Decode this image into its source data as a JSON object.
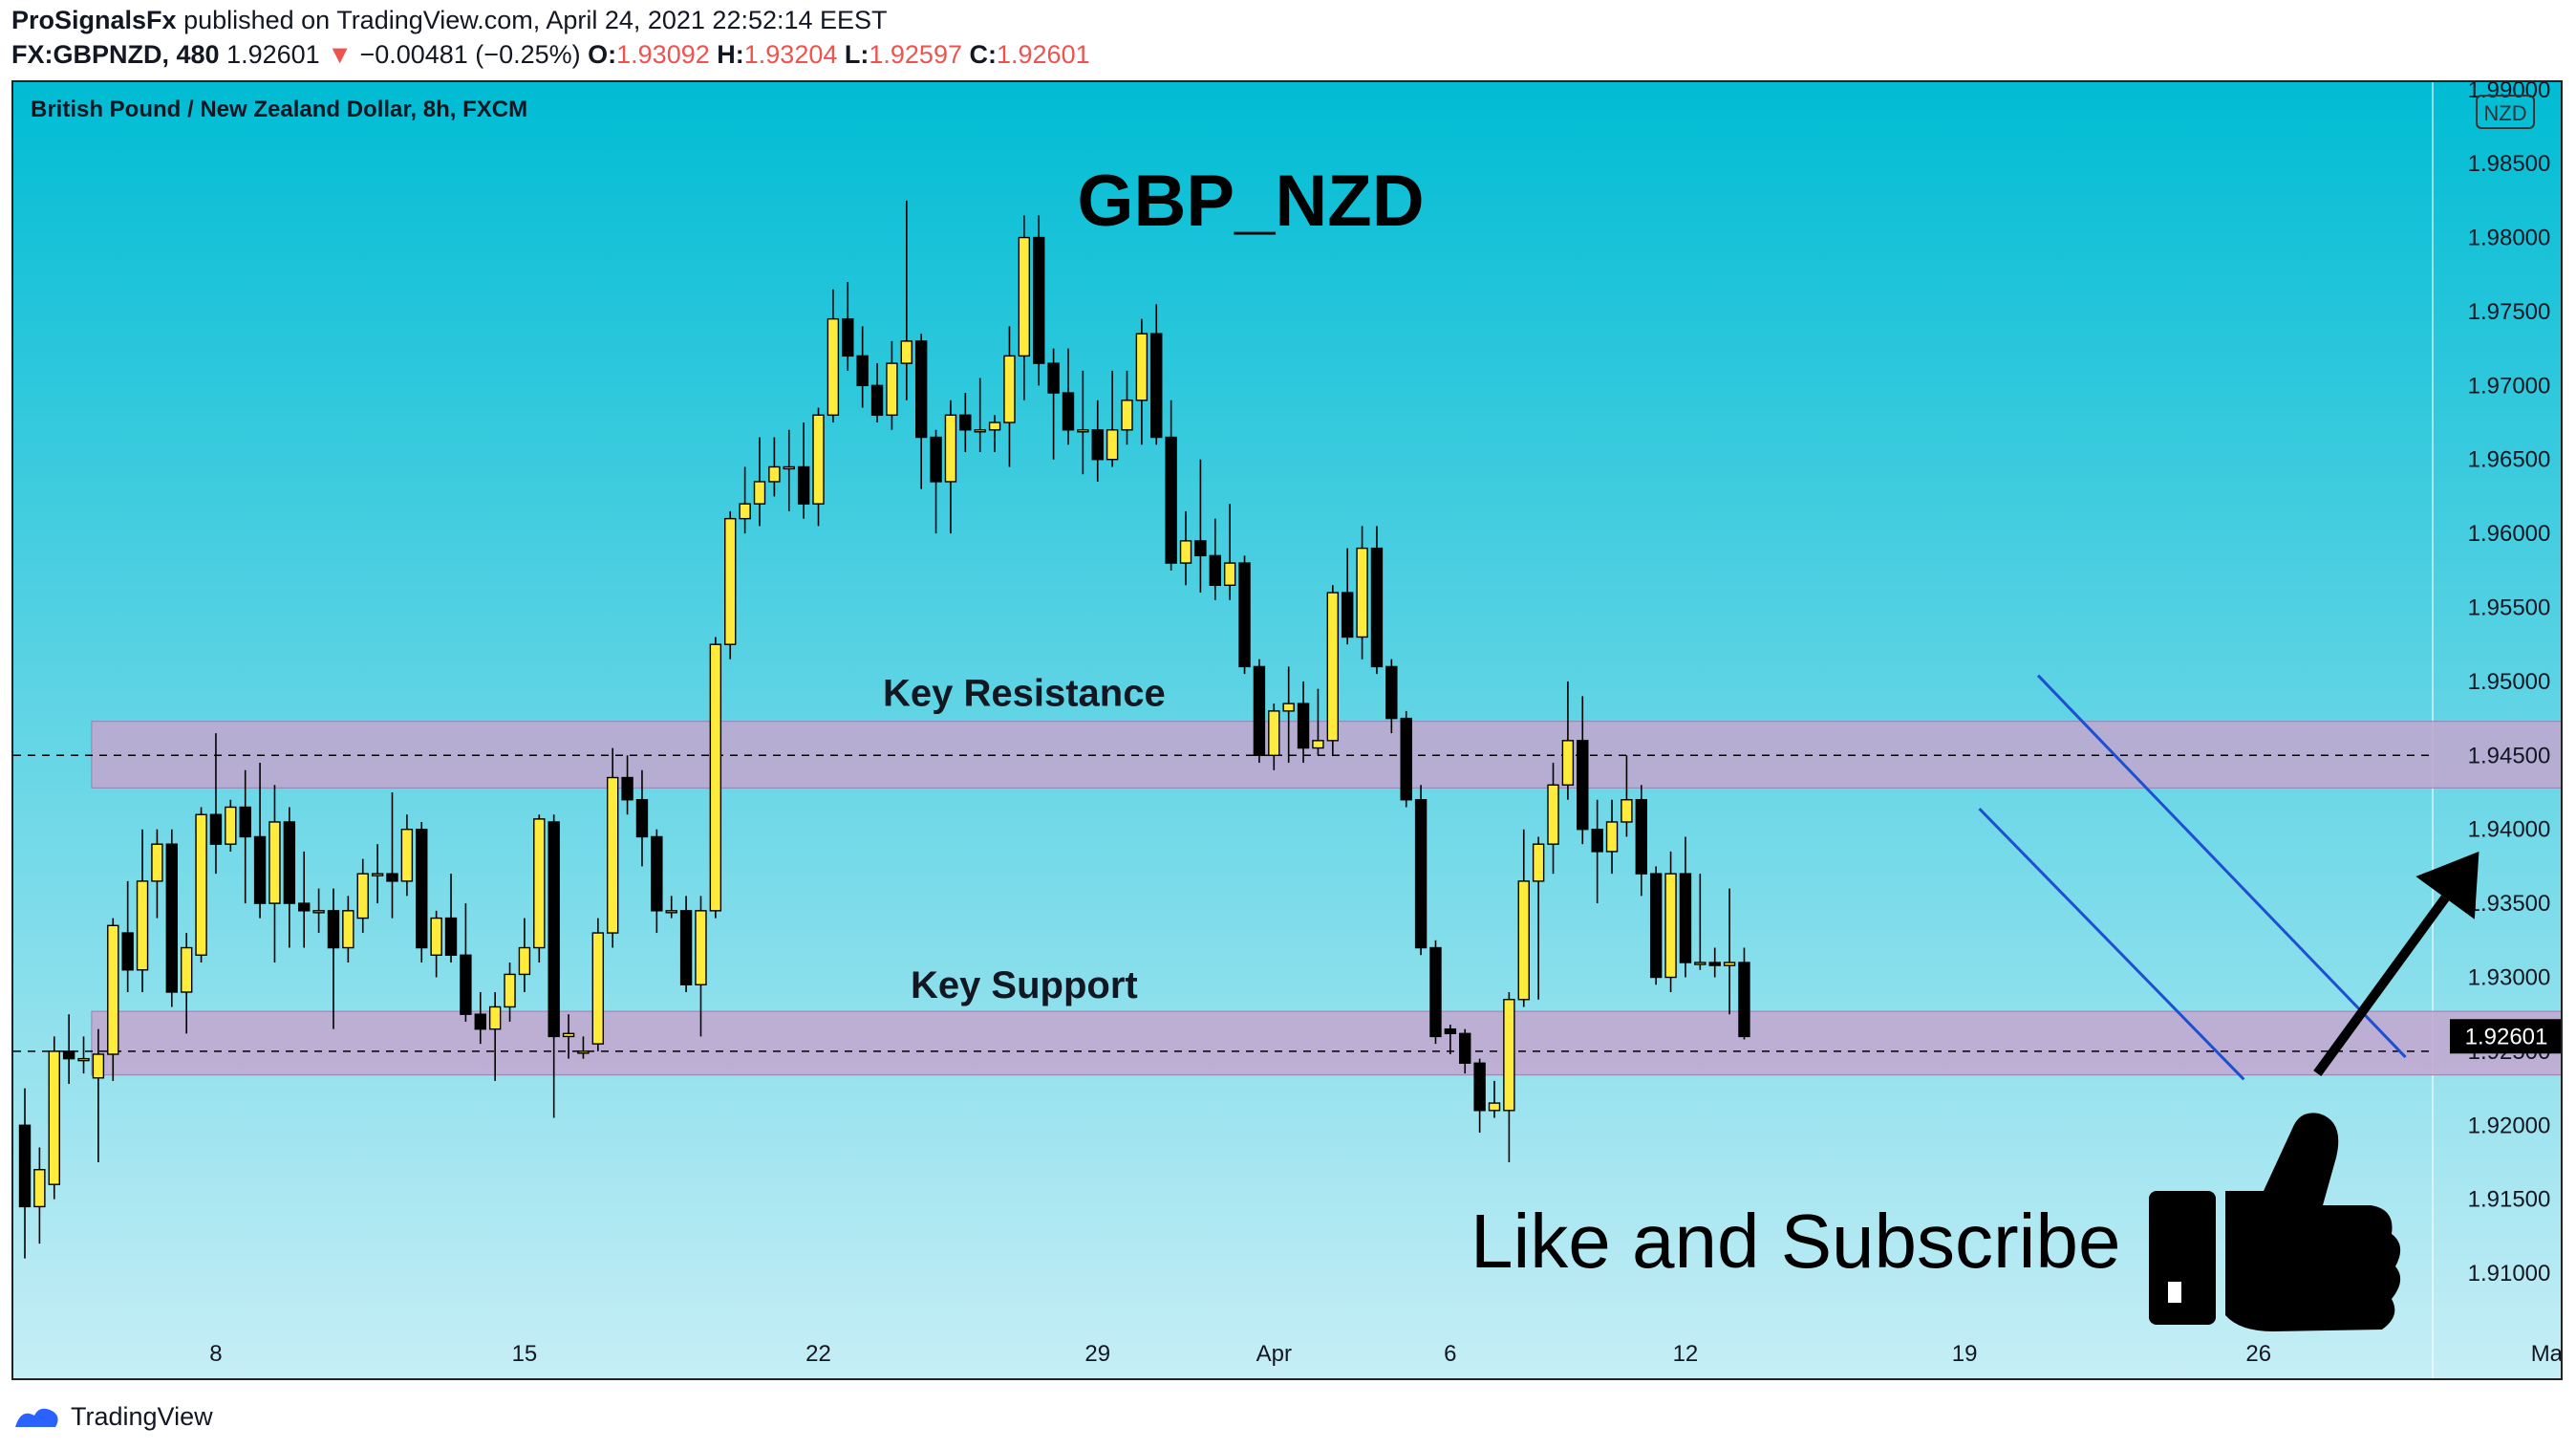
{
  "header": {
    "publisher": "ProSignalsFx",
    "published_line": "published on TradingView.com, April 24, 2021 22:52:14 EEST",
    "symbol": "FX:GBPNZD, 480",
    "last": "1.92601",
    "change_arrow": "▼",
    "change": "−0.00481 (−0.25%)",
    "o_label": "O:",
    "o": "1.93092",
    "h_label": "H:",
    "h": "1.93204",
    "l_label": "L:",
    "l": "1.92597",
    "c_label": "C:",
    "c": "1.92601"
  },
  "footer": {
    "brand": "TradingView",
    "icon": "tradingview-logo-icon"
  },
  "colors": {
    "bg_top": "#00bcd4",
    "bg_bottom": "#c6eef6",
    "bull": "#ffeb3b",
    "bear": "#000000",
    "zone": "#c4a6cf",
    "channel": "#1f4fd1",
    "price_label_bg": "#000000",
    "negative": "#ef5350"
  },
  "chart_data": {
    "type": "candlestick",
    "title": "GBP_NZD",
    "subtitle": "British Pound / New Zealand Dollar, 8h, FXCM",
    "currency_badge": "NZD",
    "ylim": [
      1.906,
      1.9905
    ],
    "y_ticks": [
      "1.99000",
      "1.98500",
      "1.98000",
      "1.97500",
      "1.97000",
      "1.96500",
      "1.96000",
      "1.95500",
      "1.95000",
      "1.94500",
      "1.94000",
      "1.93500",
      "1.93000",
      "1.92500",
      "1.92000",
      "1.91500",
      "1.91000"
    ],
    "x_labels": [
      {
        "label": "8",
        "index": 13
      },
      {
        "label": "15",
        "index": 34
      },
      {
        "label": "22",
        "index": 54
      },
      {
        "label": "29",
        "index": 73
      },
      {
        "label": "Apr",
        "index": 85
      },
      {
        "label": "6",
        "index": 97
      },
      {
        "label": "12",
        "index": 113
      },
      {
        "label": "19",
        "index": 132
      },
      {
        "label": "26",
        "index": 152
      },
      {
        "label": "May",
        "index": 172
      }
    ],
    "last_price": "1.92601",
    "dashed_levels": [
      1.945,
      1.925
    ],
    "zones": [
      {
        "name": "resistance",
        "label": "Key Resistance",
        "top": 1.9473,
        "bottom": 1.9428,
        "start_index": 5,
        "end_index": 176
      },
      {
        "name": "support",
        "label": "Key Support",
        "top": 1.9277,
        "bottom": 1.9234,
        "start_index": 5,
        "end_index": 176
      }
    ],
    "channel": {
      "upper": [
        [
          137,
          1.9504
        ],
        [
          162,
          1.9246
        ]
      ],
      "lower": [
        [
          133,
          1.9414
        ],
        [
          151,
          1.9231
        ]
      ]
    },
    "arrow": {
      "from": [
        156,
        1.9235
      ],
      "to": [
        167,
        1.9385
      ]
    },
    "cta_text": "Like and Subscribe",
    "cta_icon": "thumbs-up-icon",
    "candles": [
      [
        1.92,
        1.9145,
        1.9225,
        1.911
      ],
      [
        1.9145,
        1.917,
        1.9185,
        1.912
      ],
      [
        1.916,
        1.925,
        1.926,
        1.915
      ],
      [
        1.925,
        1.9245,
        1.9275,
        1.9228
      ],
      [
        1.9245,
        1.9245,
        1.926,
        1.9235
      ],
      [
        1.9232,
        1.9248,
        1.9265,
        1.9175
      ],
      [
        1.9248,
        1.9335,
        1.934,
        1.923
      ],
      [
        1.933,
        1.9305,
        1.9365,
        1.929
      ],
      [
        1.9305,
        1.9365,
        1.94,
        1.929
      ],
      [
        1.9365,
        1.939,
        1.94,
        1.934
      ],
      [
        1.939,
        1.929,
        1.94,
        1.928
      ],
      [
        1.929,
        1.932,
        1.933,
        1.9262
      ],
      [
        1.9315,
        1.941,
        1.9415,
        1.931
      ],
      [
        1.941,
        1.939,
        1.9465,
        1.937
      ],
      [
        1.939,
        1.9415,
        1.942,
        1.9385
      ],
      [
        1.9415,
        1.9395,
        1.944,
        1.935
      ],
      [
        1.9395,
        1.935,
        1.9445,
        1.934
      ],
      [
        1.935,
        1.9405,
        1.943,
        1.931
      ],
      [
        1.9405,
        1.935,
        1.9415,
        1.932
      ],
      [
        1.935,
        1.9345,
        1.9385,
        1.932
      ],
      [
        1.9345,
        1.9345,
        1.936,
        1.933
      ],
      [
        1.9345,
        1.932,
        1.936,
        1.9265
      ],
      [
        1.932,
        1.9345,
        1.9355,
        1.931
      ],
      [
        1.934,
        1.937,
        1.938,
        1.933
      ],
      [
        1.937,
        1.937,
        1.939,
        1.935
      ],
      [
        1.937,
        1.9365,
        1.9425,
        1.934
      ],
      [
        1.9365,
        1.94,
        1.941,
        1.9355
      ],
      [
        1.94,
        1.932,
        1.9405,
        1.931
      ],
      [
        1.9315,
        1.934,
        1.9345,
        1.93
      ],
      [
        1.934,
        1.9315,
        1.937,
        1.931
      ],
      [
        1.9315,
        1.9275,
        1.935,
        1.927
      ],
      [
        1.9275,
        1.9265,
        1.929,
        1.9255
      ],
      [
        1.9265,
        1.928,
        1.929,
        1.923
      ],
      [
        1.928,
        1.9302,
        1.931,
        1.927
      ],
      [
        1.9302,
        1.932,
        1.934,
        1.929
      ],
      [
        1.932,
        1.9407,
        1.941,
        1.931
      ],
      [
        1.9405,
        1.926,
        1.941,
        1.9205
      ],
      [
        1.926,
        1.9262,
        1.9275,
        1.9245
      ],
      [
        1.925,
        1.925,
        1.926,
        1.9245
      ],
      [
        1.9255,
        1.933,
        1.934,
        1.925
      ],
      [
        1.933,
        1.9435,
        1.9455,
        1.932
      ],
      [
        1.9435,
        1.942,
        1.945,
        1.941
      ],
      [
        1.942,
        1.9395,
        1.944,
        1.9375
      ],
      [
        1.9395,
        1.9345,
        1.94,
        1.933
      ],
      [
        1.9345,
        1.9345,
        1.9355,
        1.934
      ],
      [
        1.9345,
        1.9295,
        1.9355,
        1.929
      ],
      [
        1.9295,
        1.9345,
        1.9355,
        1.926
      ],
      [
        1.9345,
        1.9525,
        1.953,
        1.934
      ],
      [
        1.9525,
        1.961,
        1.9615,
        1.9515
      ],
      [
        1.961,
        1.962,
        1.9645,
        1.96
      ],
      [
        1.962,
        1.9635,
        1.9665,
        1.9605
      ],
      [
        1.9635,
        1.9645,
        1.9665,
        1.9625
      ],
      [
        1.9645,
        1.9645,
        1.967,
        1.9615
      ],
      [
        1.9645,
        1.962,
        1.9675,
        1.961
      ],
      [
        1.962,
        1.968,
        1.9685,
        1.9605
      ],
      [
        1.968,
        1.9745,
        1.9765,
        1.9675
      ],
      [
        1.9745,
        1.972,
        1.977,
        1.971
      ],
      [
        1.972,
        1.97,
        1.974,
        1.9685
      ],
      [
        1.97,
        1.968,
        1.9715,
        1.9675
      ],
      [
        1.968,
        1.9715,
        1.973,
        1.967
      ],
      [
        1.9715,
        1.973,
        1.9825,
        1.969
      ],
      [
        1.973,
        1.9665,
        1.9735,
        1.963
      ],
      [
        1.9665,
        1.9635,
        1.967,
        1.96
      ],
      [
        1.9635,
        1.968,
        1.969,
        1.96
      ],
      [
        1.968,
        1.967,
        1.9695,
        1.9655
      ],
      [
        1.967,
        1.967,
        1.9705,
        1.9655
      ],
      [
        1.967,
        1.9675,
        1.968,
        1.9655
      ],
      [
        1.9675,
        1.972,
        1.974,
        1.9645
      ],
      [
        1.972,
        1.98,
        1.9815,
        1.969
      ],
      [
        1.98,
        1.9715,
        1.9815,
        1.97
      ],
      [
        1.9715,
        1.9695,
        1.9725,
        1.965
      ],
      [
        1.9695,
        1.967,
        1.9725,
        1.966
      ],
      [
        1.967,
        1.967,
        1.971,
        1.964
      ],
      [
        1.967,
        1.965,
        1.969,
        1.9635
      ],
      [
        1.965,
        1.967,
        1.971,
        1.9645
      ],
      [
        1.967,
        1.969,
        1.971,
        1.966
      ],
      [
        1.969,
        1.9735,
        1.9745,
        1.966
      ],
      [
        1.9735,
        1.9665,
        1.9755,
        1.966
      ],
      [
        1.9665,
        1.958,
        1.969,
        1.9575
      ],
      [
        1.958,
        1.9595,
        1.9615,
        1.9565
      ],
      [
        1.9595,
        1.9585,
        1.965,
        1.956
      ],
      [
        1.9585,
        1.9565,
        1.961,
        1.9555
      ],
      [
        1.9565,
        1.958,
        1.962,
        1.9555
      ],
      [
        1.958,
        1.951,
        1.9585,
        1.9505
      ],
      [
        1.951,
        1.945,
        1.9515,
        1.9445
      ],
      [
        1.945,
        1.948,
        1.9485,
        1.944
      ],
      [
        1.948,
        1.9485,
        1.951,
        1.9445
      ],
      [
        1.9485,
        1.9455,
        1.95,
        1.9445
      ],
      [
        1.9455,
        1.946,
        1.9495,
        1.945
      ],
      [
        1.946,
        1.956,
        1.9565,
        1.945
      ],
      [
        1.956,
        1.953,
        1.959,
        1.9525
      ],
      [
        1.953,
        1.959,
        1.9605,
        1.9515
      ],
      [
        1.959,
        1.951,
        1.9605,
        1.9505
      ],
      [
        1.951,
        1.9475,
        1.9515,
        1.9465
      ],
      [
        1.9475,
        1.942,
        1.948,
        1.9415
      ],
      [
        1.942,
        1.932,
        1.943,
        1.9315
      ],
      [
        1.932,
        1.926,
        1.9325,
        1.9255
      ],
      [
        1.9265,
        1.9262,
        1.9268,
        1.9248
      ],
      [
        1.9262,
        1.9242,
        1.9265,
        1.9235
      ],
      [
        1.9242,
        1.921,
        1.9245,
        1.9195
      ],
      [
        1.921,
        1.9215,
        1.923,
        1.9205
      ],
      [
        1.921,
        1.9285,
        1.929,
        1.9175
      ],
      [
        1.9285,
        1.9365,
        1.94,
        1.928
      ],
      [
        1.9365,
        1.939,
        1.9395,
        1.9285
      ],
      [
        1.939,
        1.943,
        1.9445,
        1.937
      ],
      [
        1.943,
        1.946,
        1.95,
        1.942
      ],
      [
        1.946,
        1.94,
        1.949,
        1.939
      ],
      [
        1.94,
        1.9385,
        1.942,
        1.935
      ],
      [
        1.9385,
        1.9405,
        1.942,
        1.937
      ],
      [
        1.9405,
        1.942,
        1.945,
        1.9395
      ],
      [
        1.942,
        1.937,
        1.943,
        1.9355
      ],
      [
        1.937,
        1.93,
        1.9375,
        1.9295
      ],
      [
        1.93,
        1.937,
        1.9385,
        1.929
      ],
      [
        1.937,
        1.931,
        1.9395,
        1.93
      ],
      [
        1.931,
        1.931,
        1.937,
        1.9305
      ],
      [
        1.931,
        1.9308,
        1.932,
        1.93
      ],
      [
        1.9308,
        1.931,
        1.936,
        1.9275
      ],
      [
        1.931,
        1.926,
        1.932,
        1.9258
      ]
    ]
  }
}
